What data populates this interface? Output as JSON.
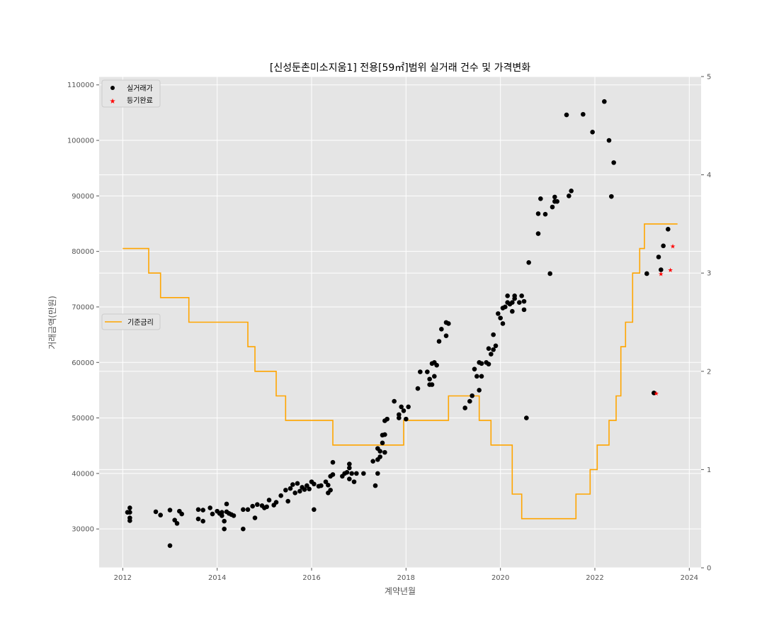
{
  "chart_data": {
    "type": "scatter",
    "title": "[신성둔촌미소지움1] 전용[59㎡]범위 실거래 건수 및 가격변화",
    "xlabel": "계약년월",
    "ylabel": "거래금액(만원)",
    "xlim": [
      2011.5,
      2024.25
    ],
    "ylim": [
      23000,
      111500
    ],
    "y2lim": [
      0,
      5
    ],
    "x_ticks": [
      "2012",
      "2014",
      "2016",
      "2018",
      "2020",
      "2022",
      "2024"
    ],
    "y_ticks": [
      "30000",
      "40000",
      "50000",
      "60000",
      "70000",
      "80000",
      "90000",
      "100000",
      "110000"
    ],
    "y2_ticks": [
      "0",
      "1",
      "2",
      "3",
      "4",
      "5"
    ],
    "grid": true,
    "legend_top": {
      "placement": "top-left",
      "entries": [
        "실거래가",
        "등기완료"
      ]
    },
    "legend_rate": {
      "placement": "center-left",
      "entries": [
        "기준금리"
      ]
    },
    "colors": {
      "trades": "#000000",
      "registered": "#ff0000",
      "rate": "#ffa500",
      "background": "#e5e5e5"
    },
    "series": [
      {
        "name": "실거래가",
        "marker": "circle",
        "points": [
          [
            2012.1,
            33000
          ],
          [
            2012.15,
            33800
          ],
          [
            2012.15,
            33000
          ],
          [
            2012.15,
            31500
          ],
          [
            2012.15,
            32000
          ],
          [
            2012.7,
            33100
          ],
          [
            2012.8,
            32500
          ],
          [
            2013.0,
            33400
          ],
          [
            2013.0,
            27000
          ],
          [
            2013.1,
            31600
          ],
          [
            2013.15,
            31000
          ],
          [
            2013.2,
            33200
          ],
          [
            2013.25,
            32700
          ],
          [
            2013.6,
            31800
          ],
          [
            2013.6,
            33500
          ],
          [
            2013.7,
            31400
          ],
          [
            2013.7,
            33400
          ],
          [
            2013.85,
            33800
          ],
          [
            2013.9,
            32700
          ],
          [
            2014.0,
            33200
          ],
          [
            2014.05,
            32800
          ],
          [
            2014.1,
            33000
          ],
          [
            2014.1,
            32400
          ],
          [
            2014.15,
            31400
          ],
          [
            2014.15,
            30000
          ],
          [
            2014.2,
            33100
          ],
          [
            2014.2,
            34500
          ],
          [
            2014.25,
            32800
          ],
          [
            2014.3,
            32600
          ],
          [
            2014.35,
            32400
          ],
          [
            2014.55,
            30000
          ],
          [
            2014.55,
            33500
          ],
          [
            2014.65,
            33500
          ],
          [
            2014.75,
            34100
          ],
          [
            2014.8,
            32000
          ],
          [
            2014.85,
            34400
          ],
          [
            2014.95,
            34200
          ],
          [
            2015.0,
            33800
          ],
          [
            2015.05,
            34000
          ],
          [
            2015.1,
            35200
          ],
          [
            2015.2,
            34300
          ],
          [
            2015.25,
            34800
          ],
          [
            2015.35,
            36000
          ],
          [
            2015.45,
            37000
          ],
          [
            2015.5,
            35000
          ],
          [
            2015.55,
            37300
          ],
          [
            2015.6,
            38000
          ],
          [
            2015.65,
            36500
          ],
          [
            2015.7,
            38200
          ],
          [
            2015.75,
            36800
          ],
          [
            2015.8,
            37500
          ],
          [
            2015.85,
            37100
          ],
          [
            2015.9,
            37800
          ],
          [
            2015.95,
            37200
          ],
          [
            2016.0,
            38500
          ],
          [
            2016.05,
            33500
          ],
          [
            2016.05,
            38100
          ],
          [
            2016.15,
            37700
          ],
          [
            2016.2,
            37800
          ],
          [
            2016.3,
            38500
          ],
          [
            2016.35,
            37900
          ],
          [
            2016.35,
            36500
          ],
          [
            2016.4,
            37000
          ],
          [
            2016.4,
            39500
          ],
          [
            2016.45,
            42000
          ],
          [
            2016.45,
            39800
          ],
          [
            2016.65,
            39500
          ],
          [
            2016.7,
            40000
          ],
          [
            2016.75,
            40200
          ],
          [
            2016.8,
            41000
          ],
          [
            2016.8,
            41700
          ],
          [
            2016.8,
            39000
          ],
          [
            2016.85,
            40000
          ],
          [
            2016.9,
            38500
          ],
          [
            2016.95,
            40000
          ],
          [
            2017.1,
            40000
          ],
          [
            2017.3,
            42200
          ],
          [
            2017.35,
            37800
          ],
          [
            2017.4,
            40000
          ],
          [
            2017.4,
            42500
          ],
          [
            2017.4,
            44500
          ],
          [
            2017.45,
            43000
          ],
          [
            2017.45,
            44000
          ],
          [
            2017.5,
            46900
          ],
          [
            2017.5,
            45500
          ],
          [
            2017.55,
            47000
          ],
          [
            2017.55,
            49500
          ],
          [
            2017.55,
            43800
          ],
          [
            2017.6,
            49800
          ],
          [
            2017.75,
            53000
          ],
          [
            2017.85,
            50000
          ],
          [
            2017.85,
            50600
          ],
          [
            2017.9,
            52000
          ],
          [
            2017.95,
            51300
          ],
          [
            2018.0,
            49800
          ],
          [
            2018.05,
            52000
          ],
          [
            2018.25,
            55300
          ],
          [
            2018.3,
            58300
          ],
          [
            2018.45,
            58300
          ],
          [
            2018.5,
            56000
          ],
          [
            2018.5,
            57000
          ],
          [
            2018.55,
            56000
          ],
          [
            2018.55,
            59800
          ],
          [
            2018.6,
            57500
          ],
          [
            2018.6,
            60000
          ],
          [
            2018.65,
            59500
          ],
          [
            2018.7,
            63800
          ],
          [
            2018.75,
            66000
          ],
          [
            2018.85,
            64800
          ],
          [
            2018.85,
            67200
          ],
          [
            2018.9,
            67000
          ],
          [
            2019.25,
            51800
          ],
          [
            2019.35,
            53000
          ],
          [
            2019.4,
            54000
          ],
          [
            2019.45,
            58800
          ],
          [
            2019.5,
            57500
          ],
          [
            2019.55,
            55000
          ],
          [
            2019.55,
            60000
          ],
          [
            2019.6,
            57500
          ],
          [
            2019.6,
            59800
          ],
          [
            2019.7,
            60000
          ],
          [
            2019.75,
            59700
          ],
          [
            2019.75,
            62500
          ],
          [
            2019.8,
            61500
          ],
          [
            2019.85,
            62300
          ],
          [
            2019.85,
            65000
          ],
          [
            2019.9,
            63000
          ],
          [
            2019.95,
            68800
          ],
          [
            2020.0,
            68000
          ],
          [
            2020.05,
            67000
          ],
          [
            2020.05,
            69800
          ],
          [
            2020.1,
            70000
          ],
          [
            2020.15,
            70800
          ],
          [
            2020.15,
            72000
          ],
          [
            2020.2,
            70500
          ],
          [
            2020.25,
            70800
          ],
          [
            2020.25,
            69200
          ],
          [
            2020.3,
            71500
          ],
          [
            2020.3,
            72000
          ],
          [
            2020.4,
            70800
          ],
          [
            2020.45,
            72000
          ],
          [
            2020.5,
            71000
          ],
          [
            2020.5,
            69500
          ],
          [
            2020.55,
            50000
          ],
          [
            2020.6,
            78000
          ],
          [
            2020.8,
            83200
          ],
          [
            2020.8,
            86800
          ],
          [
            2020.85,
            89500
          ],
          [
            2020.95,
            86700
          ],
          [
            2021.05,
            76000
          ],
          [
            2021.1,
            88000
          ],
          [
            2021.15,
            89000
          ],
          [
            2021.15,
            89800
          ],
          [
            2021.2,
            89000
          ],
          [
            2021.4,
            104600
          ],
          [
            2021.45,
            90000
          ],
          [
            2021.5,
            90900
          ],
          [
            2021.75,
            104700
          ],
          [
            2021.95,
            101500
          ],
          [
            2022.2,
            107000
          ],
          [
            2022.3,
            100000
          ],
          [
            2022.35,
            89900
          ],
          [
            2022.4,
            96000
          ],
          [
            2023.1,
            76000
          ],
          [
            2023.25,
            54500
          ],
          [
            2023.35,
            79000
          ],
          [
            2023.4,
            76700
          ],
          [
            2023.45,
            81000
          ],
          [
            2023.55,
            84000
          ]
        ]
      },
      {
        "name": "등기완료",
        "marker": "star",
        "points": [
          [
            2023.3,
            54500
          ],
          [
            2023.4,
            76000
          ],
          [
            2023.6,
            76700
          ],
          [
            2023.65,
            81000
          ]
        ]
      },
      {
        "name": "기준금리",
        "type": "step",
        "axis": "right",
        "points": [
          [
            2012.0,
            3.25
          ],
          [
            2012.55,
            3.0
          ],
          [
            2012.8,
            2.75
          ],
          [
            2013.4,
            2.5
          ],
          [
            2014.65,
            2.25
          ],
          [
            2014.8,
            2.0
          ],
          [
            2015.25,
            1.75
          ],
          [
            2015.45,
            1.5
          ],
          [
            2016.45,
            1.25
          ],
          [
            2017.95,
            1.5
          ],
          [
            2018.9,
            1.75
          ],
          [
            2019.55,
            1.5
          ],
          [
            2019.8,
            1.25
          ],
          [
            2020.25,
            0.75
          ],
          [
            2020.45,
            0.5
          ],
          [
            2021.6,
            0.75
          ],
          [
            2021.9,
            1.0
          ],
          [
            2022.05,
            1.25
          ],
          [
            2022.3,
            1.5
          ],
          [
            2022.45,
            1.75
          ],
          [
            2022.55,
            2.25
          ],
          [
            2022.65,
            2.5
          ],
          [
            2022.8,
            3.0
          ],
          [
            2022.95,
            3.25
          ],
          [
            2023.05,
            3.5
          ],
          [
            2023.75,
            3.5
          ]
        ]
      }
    ]
  }
}
